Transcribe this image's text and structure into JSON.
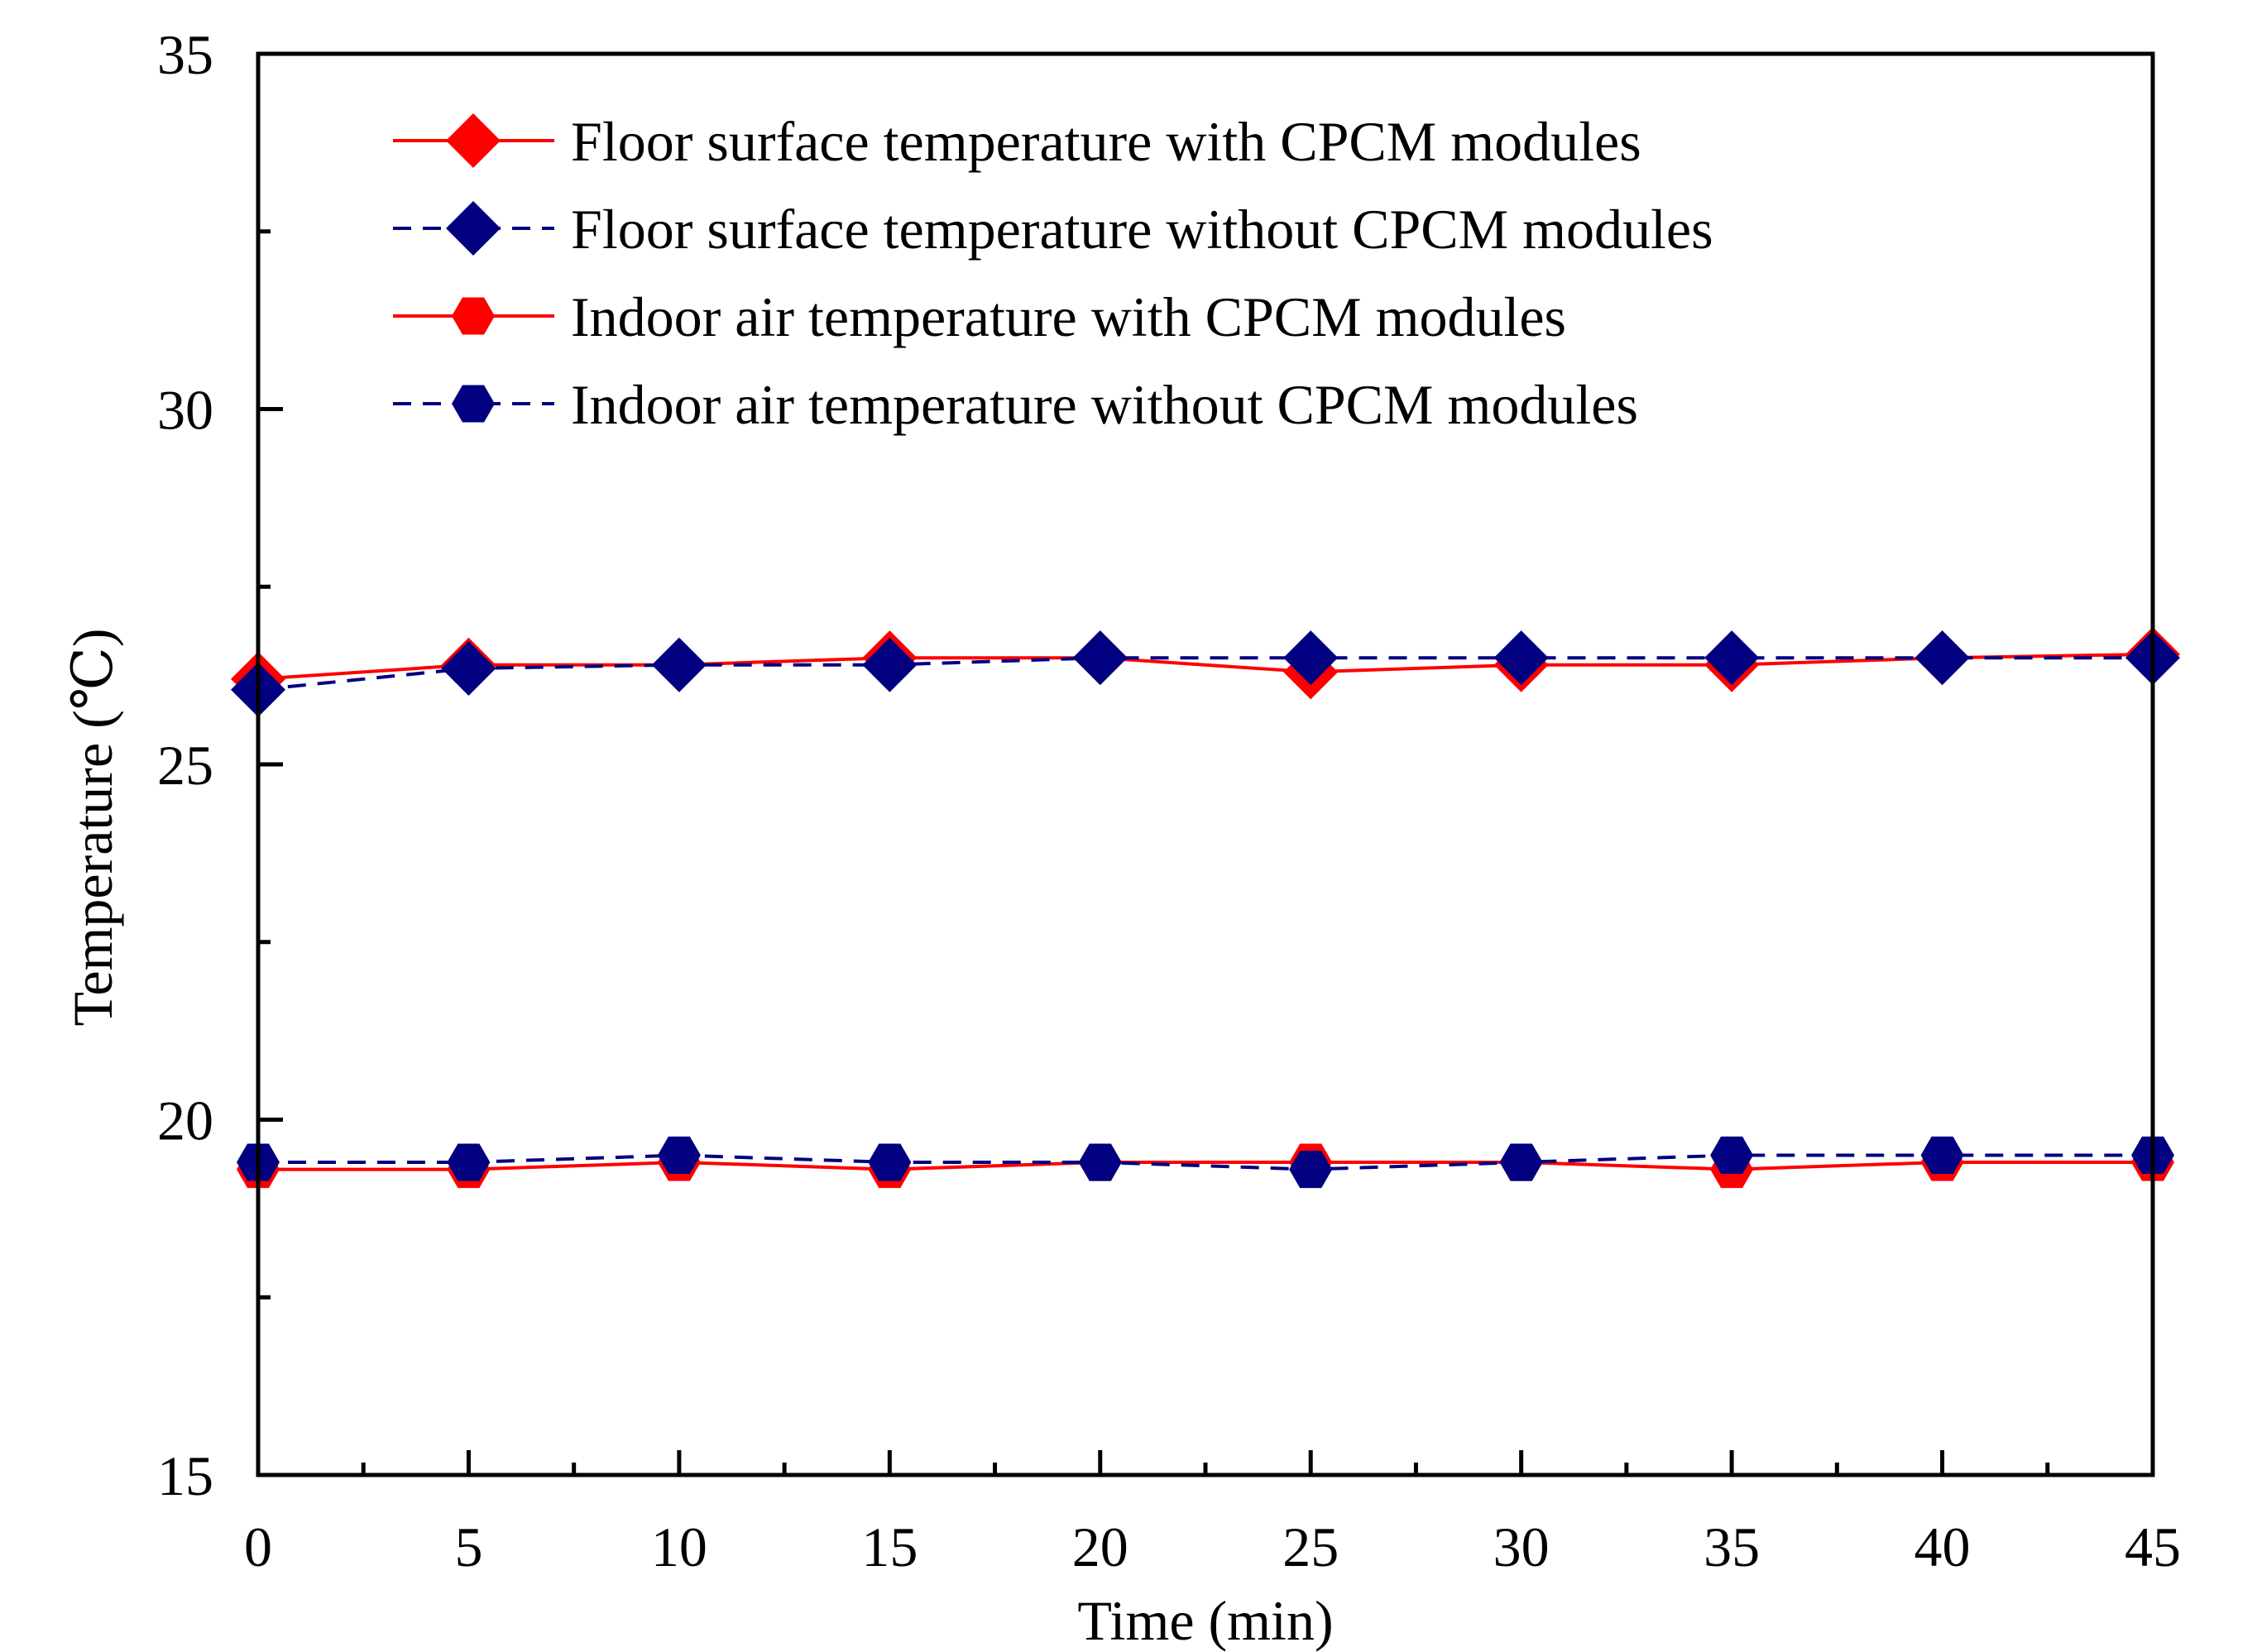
{
  "chart_data": {
    "type": "line",
    "title": "",
    "xlabel": "Time (min)",
    "ylabel": "Temperature (℃)",
    "xlim": [
      0,
      45
    ],
    "ylim": [
      15,
      35
    ],
    "x_ticks": [
      "0",
      "5",
      "10",
      "15",
      "20",
      "25",
      "30",
      "35",
      "40",
      "45"
    ],
    "y_ticks": [
      "15",
      "20",
      "25",
      "30",
      "35"
    ],
    "grid": false,
    "legend_position": "top-left",
    "x": [
      0,
      5,
      10,
      15,
      20,
      25,
      30,
      35,
      40,
      45
    ],
    "series": [
      {
        "name": "Floor surface temperature with CPCM modules",
        "color": "#ff0000",
        "line_style": "solid",
        "marker": "diamond",
        "values": [
          26.2,
          26.4,
          26.4,
          26.5,
          26.5,
          26.3,
          26.4,
          26.4,
          26.5,
          26.55
        ]
      },
      {
        "name": "Floor surface temperature without CPCM modules",
        "color": "#000080",
        "line_style": "dashed",
        "marker": "diamond",
        "values": [
          26.05,
          26.35,
          26.4,
          26.4,
          26.5,
          26.5,
          26.5,
          26.5,
          26.5,
          26.5
        ]
      },
      {
        "name": "Indoor air temperature with CPCM modules",
        "color": "#ff0000",
        "line_style": "solid",
        "marker": "hexagon",
        "values": [
          19.3,
          19.3,
          19.4,
          19.3,
          19.4,
          19.4,
          19.4,
          19.3,
          19.4,
          19.4
        ]
      },
      {
        "name": "Indoor air temperature without CPCM modules",
        "color": "#000080",
        "line_style": "dashed",
        "marker": "hexagon",
        "values": [
          19.4,
          19.4,
          19.5,
          19.4,
          19.4,
          19.3,
          19.4,
          19.5,
          19.5,
          19.5
        ]
      }
    ]
  }
}
